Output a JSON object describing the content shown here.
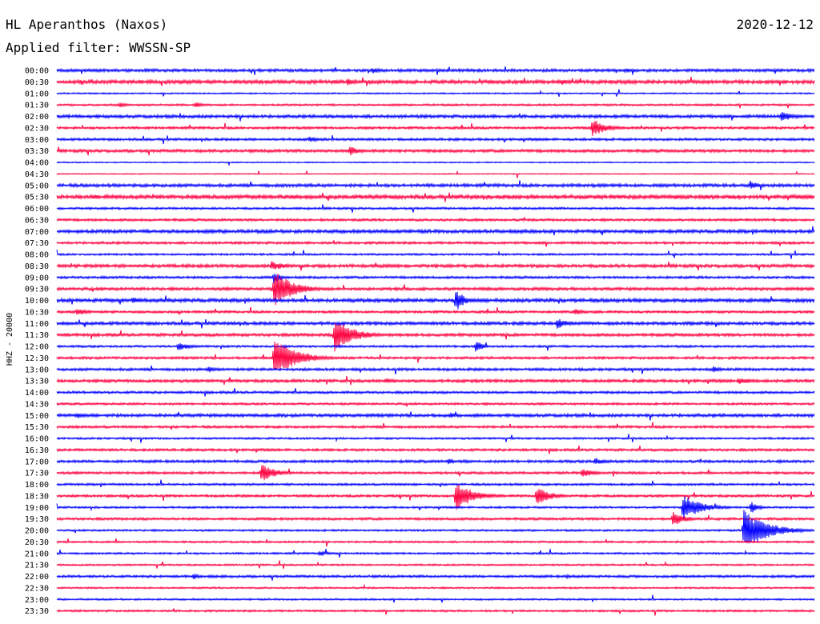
{
  "header": {
    "station": "HL Aperanthos (Naxos)",
    "date": "2020-12-12",
    "filter": "Applied filter: WWSSN-SP"
  },
  "chart_data": {
    "type": "line",
    "title": "HL Aperanthos (Naxos)",
    "ylabel": "HHZ - 20000",
    "grid": false,
    "legend": "none",
    "colors": {
      "even_rows": "#0000ff",
      "odd_rows": "#ff0040"
    },
    "rows": [
      "00:00",
      "00:30",
      "01:00",
      "01:30",
      "02:00",
      "02:30",
      "03:00",
      "03:30",
      "04:00",
      "04:30",
      "05:00",
      "05:30",
      "06:00",
      "06:30",
      "07:00",
      "07:30",
      "08:00",
      "08:30",
      "09:00",
      "09:30",
      "10:00",
      "10:30",
      "11:00",
      "11:30",
      "12:00",
      "12:30",
      "13:00",
      "13:30",
      "14:00",
      "14:30",
      "15:00",
      "15:30",
      "16:00",
      "16:30",
      "17:00",
      "17:30",
      "18:00",
      "18:30",
      "19:00",
      "19:30",
      "20:00",
      "20:30",
      "21:00",
      "21:30",
      "22:00",
      "22:30",
      "23:00",
      "23:30"
    ],
    "row_noise": [
      1.2,
      1.5,
      0.6,
      0.8,
      1.3,
      1.0,
      1.0,
      1.2,
      0.5,
      0.4,
      1.3,
      1.6,
      0.9,
      1.0,
      1.4,
      1.0,
      0.8,
      1.3,
      1.0,
      1.2,
      1.5,
      1.0,
      1.3,
      1.2,
      0.9,
      1.0,
      1.1,
      1.2,
      1.0,
      0.9,
      1.3,
      1.0,
      0.8,
      1.0,
      1.1,
      1.0,
      0.9,
      1.0,
      0.8,
      1.0,
      0.8,
      0.8,
      0.8,
      0.7,
      1.0,
      0.7,
      0.7,
      0.8
    ],
    "events": [
      {
        "row": 0,
        "minute": 12.5,
        "amp": 4,
        "dur": 0.8
      },
      {
        "row": 0,
        "minute": 22.5,
        "amp": 3,
        "dur": 1.2
      },
      {
        "row": 1,
        "minute": 11.5,
        "amp": 5,
        "dur": 0.8
      },
      {
        "row": 1,
        "minute": 20.0,
        "amp": 4,
        "dur": 0.6
      },
      {
        "row": 3,
        "minute": 2.5,
        "amp": 3,
        "dur": 0.8
      },
      {
        "row": 3,
        "minute": 5.5,
        "amp": 4,
        "dur": 0.6
      },
      {
        "row": 4,
        "minute": 28.7,
        "amp": 7,
        "dur": 1.0
      },
      {
        "row": 5,
        "minute": 21.2,
        "amp": 12,
        "dur": 1.2
      },
      {
        "row": 6,
        "minute": 10.0,
        "amp": 4,
        "dur": 0.8
      },
      {
        "row": 7,
        "minute": 11.6,
        "amp": 6,
        "dur": 1.0
      },
      {
        "row": 10,
        "minute": 27.5,
        "amp": 5,
        "dur": 0.8
      },
      {
        "row": 11,
        "minute": 1.5,
        "amp": 3,
        "dur": 0.8
      },
      {
        "row": 11,
        "minute": 24.5,
        "amp": 3,
        "dur": 1.4
      },
      {
        "row": 17,
        "minute": 8.5,
        "amp": 6,
        "dur": 1.4
      },
      {
        "row": 18,
        "minute": 8.6,
        "amp": 8,
        "dur": 0.6
      },
      {
        "row": 19,
        "minute": 8.6,
        "amp": 24,
        "dur": 1.6
      },
      {
        "row": 20,
        "minute": 3.0,
        "amp": 5,
        "dur": 0.8
      },
      {
        "row": 20,
        "minute": 15.8,
        "amp": 14,
        "dur": 0.8
      },
      {
        "row": 21,
        "minute": 0.8,
        "amp": 5,
        "dur": 1.0
      },
      {
        "row": 21,
        "minute": 20.5,
        "amp": 5,
        "dur": 0.8
      },
      {
        "row": 22,
        "minute": 19.8,
        "amp": 7,
        "dur": 1.0
      },
      {
        "row": 23,
        "minute": 11.0,
        "amp": 22,
        "dur": 1.6
      },
      {
        "row": 24,
        "minute": 4.8,
        "amp": 5,
        "dur": 1.2
      },
      {
        "row": 24,
        "minute": 16.6,
        "amp": 8,
        "dur": 0.6
      },
      {
        "row": 25,
        "minute": 8.6,
        "amp": 26,
        "dur": 1.8
      },
      {
        "row": 26,
        "minute": 6.0,
        "amp": 4,
        "dur": 0.8
      },
      {
        "row": 26,
        "minute": 26.0,
        "amp": 4,
        "dur": 0.8
      },
      {
        "row": 27,
        "minute": 13.0,
        "amp": 4,
        "dur": 0.8
      },
      {
        "row": 27,
        "minute": 27.0,
        "amp": 5,
        "dur": 1.2
      },
      {
        "row": 30,
        "minute": 0.8,
        "amp": 4,
        "dur": 0.8
      },
      {
        "row": 30,
        "minute": 15.6,
        "amp": 4,
        "dur": 0.6
      },
      {
        "row": 34,
        "minute": 15.5,
        "amp": 4,
        "dur": 0.6
      },
      {
        "row": 34,
        "minute": 21.3,
        "amp": 5,
        "dur": 1.0
      },
      {
        "row": 35,
        "minute": 8.1,
        "amp": 12,
        "dur": 1.2
      },
      {
        "row": 35,
        "minute": 20.8,
        "amp": 6,
        "dur": 1.0
      },
      {
        "row": 37,
        "minute": 15.8,
        "amp": 18,
        "dur": 1.6
      },
      {
        "row": 37,
        "minute": 19.0,
        "amp": 12,
        "dur": 1.2
      },
      {
        "row": 38,
        "minute": 24.8,
        "amp": 16,
        "dur": 1.6
      },
      {
        "row": 38,
        "minute": 27.5,
        "amp": 8,
        "dur": 0.6
      },
      {
        "row": 39,
        "minute": 24.4,
        "amp": 10,
        "dur": 1.0
      },
      {
        "row": 40,
        "minute": 27.2,
        "amp": 26,
        "dur": 2.0
      },
      {
        "row": 42,
        "minute": 10.4,
        "amp": 4,
        "dur": 0.8
      },
      {
        "row": 44,
        "minute": 5.4,
        "amp": 4,
        "dur": 0.6
      },
      {
        "row": 44,
        "minute": 20.2,
        "amp": 3,
        "dur": 0.6
      }
    ]
  }
}
